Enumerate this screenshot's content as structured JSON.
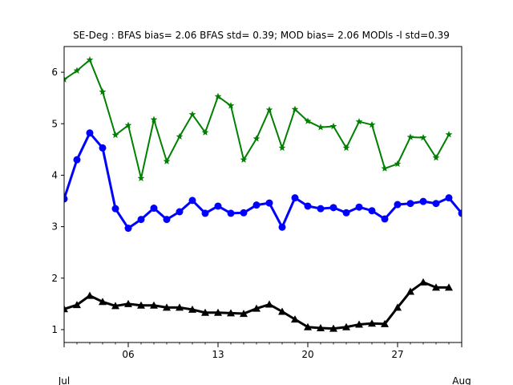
{
  "chart_data": {
    "type": "line",
    "title": "SE-Deg   : BFAS bias= 2.06 BFAS std= 0.39; MOD bias= 2.06 MODls -l std=0.39",
    "xlabel": "",
    "ylabel": "",
    "x_range_days": [
      1,
      32
    ],
    "ylim": [
      0.75,
      6.5
    ],
    "grid": false,
    "x_ticks": [
      {
        "day": 6,
        "label": "06"
      },
      {
        "day": 13,
        "label": "13"
      },
      {
        "day": 20,
        "label": "20"
      },
      {
        "day": 27,
        "label": "27"
      }
    ],
    "x_month_labels": [
      {
        "day": 1,
        "label": "Jul"
      },
      {
        "day": 32,
        "label": "Aug"
      }
    ],
    "y_ticks": [
      1,
      2,
      3,
      4,
      5,
      6
    ],
    "series": [
      {
        "color": "#008000",
        "marker": "star",
        "line_width": 2,
        "x": [
          1,
          2,
          3,
          4,
          5,
          6,
          7,
          8,
          9,
          10,
          11,
          12,
          13,
          14,
          15,
          16,
          17,
          18,
          19,
          20,
          21,
          22,
          23,
          24,
          25,
          26,
          27,
          28,
          29,
          30,
          31
        ],
        "values": [
          5.86,
          6.03,
          6.24,
          5.62,
          4.78,
          4.97,
          3.94,
          5.08,
          4.27,
          4.75,
          5.18,
          4.83,
          5.53,
          5.35,
          4.3,
          4.71,
          5.27,
          4.53,
          5.28,
          5.05,
          4.93,
          4.95,
          4.53,
          5.04,
          4.98,
          4.13,
          4.22,
          4.74,
          4.73,
          4.34,
          4.79
        ]
      },
      {
        "color": "#0000ff",
        "marker": "circle",
        "line_width": 3,
        "x": [
          1,
          2,
          3,
          4,
          5,
          6,
          7,
          8,
          9,
          10,
          11,
          12,
          13,
          14,
          15,
          16,
          17,
          18,
          19,
          20,
          21,
          22,
          23,
          24,
          25,
          26,
          27,
          28,
          29,
          30,
          31,
          32
        ],
        "values": [
          3.54,
          4.3,
          4.82,
          4.53,
          3.35,
          2.97,
          3.14,
          3.36,
          3.14,
          3.29,
          3.51,
          3.26,
          3.4,
          3.26,
          3.27,
          3.42,
          3.46,
          2.99,
          3.56,
          3.4,
          3.35,
          3.37,
          3.27,
          3.38,
          3.31,
          3.15,
          3.43,
          3.45,
          3.49,
          3.45,
          3.56,
          3.26
        ]
      },
      {
        "color": "#000000",
        "marker": "triangle",
        "line_width": 3,
        "x": [
          1,
          2,
          3,
          4,
          5,
          6,
          7,
          8,
          9,
          10,
          11,
          12,
          13,
          14,
          15,
          16,
          17,
          18,
          19,
          20,
          21,
          22,
          23,
          24,
          25,
          26,
          27,
          28,
          29,
          30,
          31
        ],
        "values": [
          1.4,
          1.48,
          1.66,
          1.54,
          1.46,
          1.5,
          1.47,
          1.47,
          1.43,
          1.43,
          1.39,
          1.33,
          1.33,
          1.32,
          1.31,
          1.41,
          1.49,
          1.35,
          1.2,
          1.05,
          1.03,
          1.02,
          1.05,
          1.1,
          1.12,
          1.11,
          1.43,
          1.74,
          1.92,
          1.82,
          1.82
        ]
      }
    ]
  }
}
